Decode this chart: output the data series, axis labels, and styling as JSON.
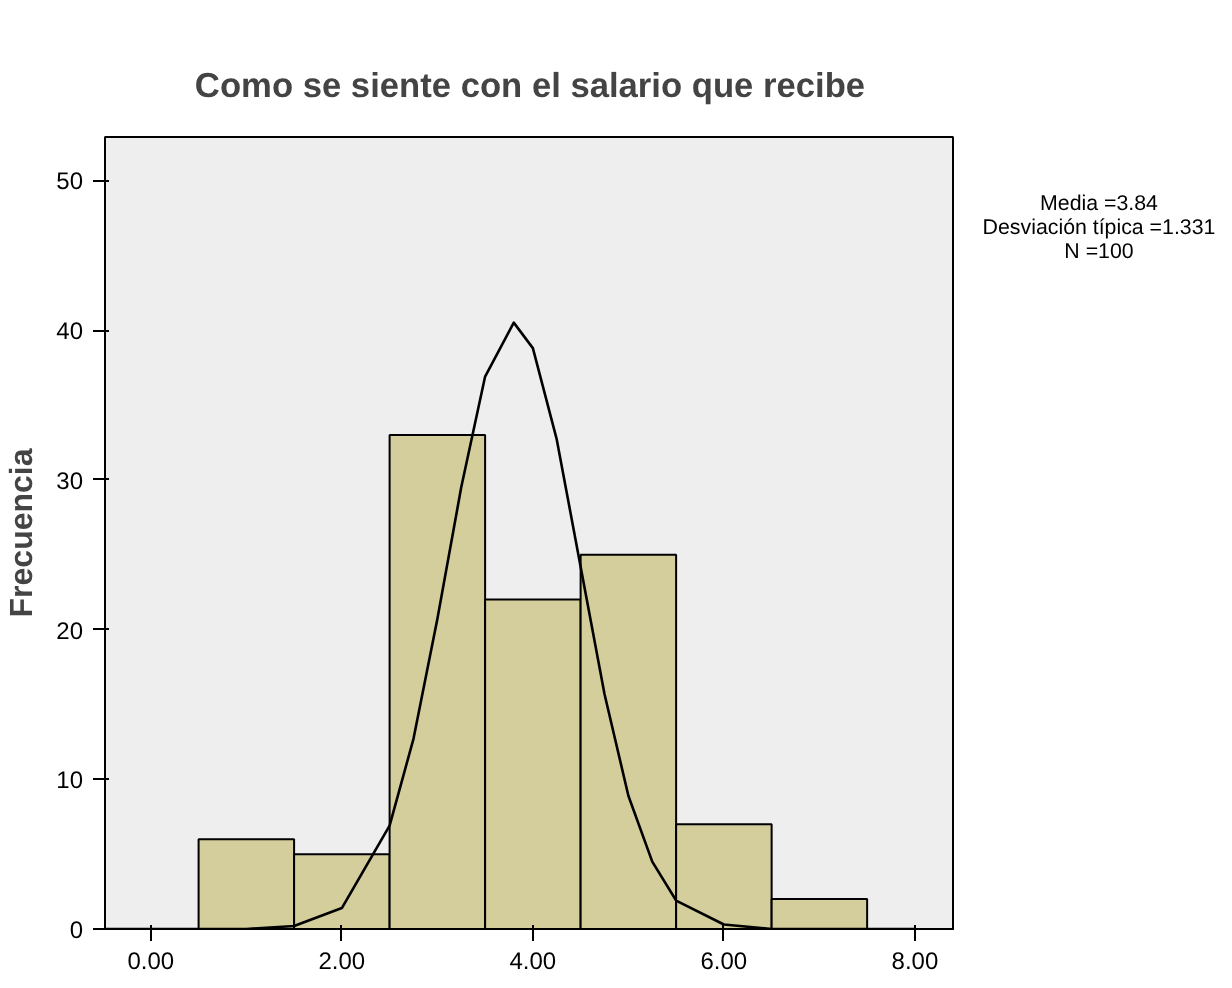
{
  "chart_data": {
    "type": "histogram",
    "title": "Como se siente con el salario que recibe",
    "ylabel": "Frecuencia",
    "bins": [
      0.5,
      1.5,
      2.5,
      3.5,
      4.5,
      5.5,
      6.5,
      7.5
    ],
    "values": [
      6,
      5,
      33,
      22,
      25,
      7,
      2
    ],
    "color": "#d3ce9c",
    "series": [
      {
        "type": "line",
        "color": "#000000",
        "x": [
          -0.48,
          0.5,
          1.0,
          1.5,
          2.0,
          2.5,
          2.75,
          3.0,
          3.25,
          3.5,
          3.8,
          4.0,
          4.25,
          4.5,
          4.75,
          5.0,
          5.25,
          5.5,
          6.0,
          6.5,
          7.0,
          8.0
        ],
        "values": [
          0,
          0,
          0,
          0.2,
          1.4,
          6.9,
          12.7,
          20.7,
          29.5,
          36.9,
          40.5,
          38.8,
          32.7,
          24.2,
          15.7,
          8.9,
          4.5,
          1.9,
          0.3,
          0,
          0,
          0
        ]
      }
    ],
    "xlim": [
      -0.48,
      8.42
    ],
    "ylim": [
      0,
      52.9
    ],
    "xticks": [
      {
        "value": 0,
        "label": "0.00"
      },
      {
        "value": 2,
        "label": "2.00"
      },
      {
        "value": 4,
        "label": "4.00"
      },
      {
        "value": 6,
        "label": "6.00"
      },
      {
        "value": 8,
        "label": "8.00"
      }
    ],
    "yticks": [
      0,
      10,
      20,
      30,
      40,
      50
    ],
    "annotations": [
      "Media =3.84",
      "Desviación típica =1.331",
      "N =100"
    ],
    "grid": false
  }
}
